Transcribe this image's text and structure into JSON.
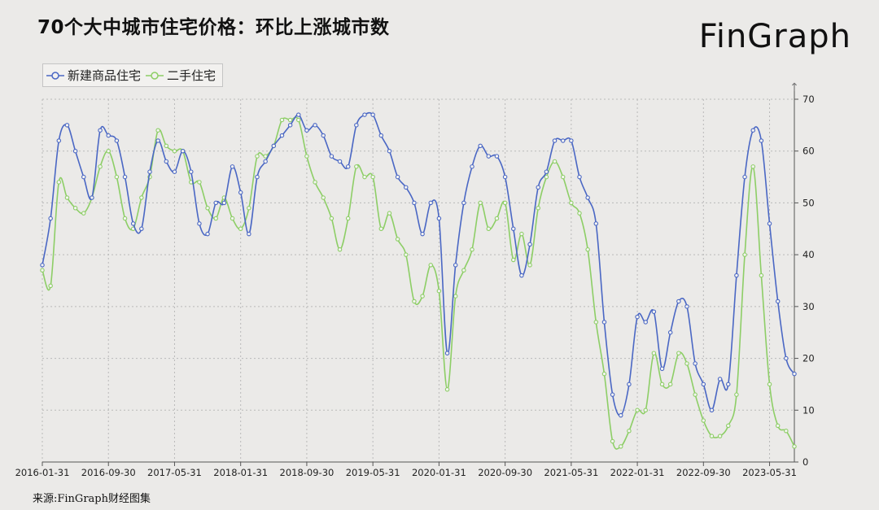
{
  "title": "70个大中城市住宅价格：环比上涨城市数",
  "brand": "FinGraph",
  "footer": "来源:FinGraph财经图集",
  "axis_arrow": "↑",
  "colors": {
    "series1": "#4a67c4",
    "series2": "#8dce66",
    "grid": "#b9b9b9",
    "axis": "#555555"
  },
  "chart_data": {
    "type": "line",
    "title": "70个大中城市住宅价格：环比上涨城市数",
    "xlabel": "",
    "ylabel": "",
    "ylim": [
      0,
      70
    ],
    "yticks": [
      0,
      10,
      20,
      30,
      40,
      50,
      60,
      70
    ],
    "x_tick_labels": [
      "2016-01-31",
      "2016-09-30",
      "2017-05-31",
      "2018-01-31",
      "2018-09-30",
      "2019-05-31",
      "2020-01-31",
      "2020-09-30",
      "2021-05-31",
      "2022-01-31",
      "2022-09-30",
      "2023-05-31"
    ],
    "x_start": "2016-01-31",
    "x_end": "2023-07-31",
    "legend_position": "top-left",
    "grid": true,
    "series": [
      {
        "name": "新建商品住宅",
        "color": "#4a67c4",
        "values": [
          38,
          47,
          62,
          65,
          60,
          55,
          51,
          64,
          63,
          62,
          55,
          46,
          45,
          56,
          62,
          58,
          56,
          60,
          56,
          46,
          44,
          50,
          50,
          57,
          52,
          44,
          55,
          58,
          61,
          63,
          65,
          67,
          64,
          65,
          63,
          59,
          58,
          57,
          65,
          67,
          67,
          63,
          60,
          55,
          53,
          50,
          44,
          50,
          47,
          21,
          38,
          50,
          57,
          61,
          59,
          59,
          55,
          45,
          36,
          42,
          53,
          56,
          62,
          62,
          62,
          55,
          51,
          46,
          27,
          13,
          9,
          15,
          28,
          27,
          29,
          18,
          25,
          31,
          30,
          19,
          15,
          10,
          16,
          15,
          36,
          55,
          64,
          62,
          46,
          31,
          20,
          17
        ]
      },
      {
        "name": "二手住宅",
        "color": "#8dce66",
        "values": [
          37,
          34,
          54,
          51,
          49,
          48,
          51,
          57,
          60,
          55,
          47,
          45,
          51,
          55,
          64,
          61,
          60,
          60,
          54,
          54,
          49,
          47,
          51,
          47,
          45,
          49,
          59,
          59,
          61,
          66,
          66,
          66,
          59,
          54,
          51,
          47,
          41,
          47,
          57,
          55,
          55,
          45,
          48,
          43,
          40,
          31,
          32,
          38,
          33,
          14,
          32,
          37,
          41,
          50,
          45,
          47,
          50,
          39,
          44,
          38,
          49,
          55,
          58,
          55,
          50,
          48,
          41,
          27,
          17,
          4,
          3,
          6,
          10,
          10,
          21,
          15,
          15,
          21,
          19,
          13,
          8,
          5,
          5,
          7,
          13,
          40,
          57,
          36,
          15,
          7,
          6,
          3
        ]
      }
    ]
  }
}
